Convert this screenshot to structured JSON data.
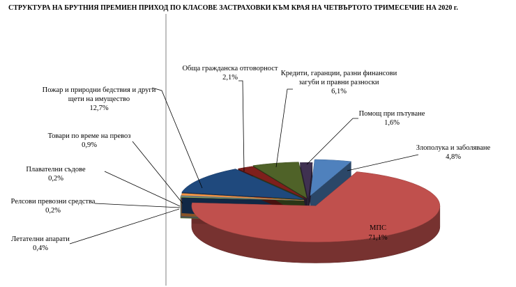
{
  "chart_data": {
    "type": "pie",
    "title": "СТРУКТУРА  НА БРУТНИЯ  ПРЕМИЕН  ПРИХОД  ПО КЛАСОВЕ  ЗАСТРАХОВКИ  КЪМ КРАЯ НА ЧЕТВЪРТОТО  ТРИМЕСЕЧИЕ  НА 2020 г.",
    "value_unit": "%",
    "slices": [
      {
        "name": "Злополука и заболяване",
        "value": 4.8,
        "value_label": "4,8%",
        "color": "#4f81bd"
      },
      {
        "name": "МПС",
        "value": 71.1,
        "value_label": "71,1%",
        "color": "#c0504d"
      },
      {
        "name": "Летателни  апарати",
        "value": 0.4,
        "value_label": "0,4%",
        "color": "#9bbb59"
      },
      {
        "name": "Релсови превозни средства",
        "value": 0.2,
        "value_label": "0,2%",
        "color": "#8064a2"
      },
      {
        "name": "Плавателни  съдове",
        "value": 0.2,
        "value_label": "0,2%",
        "color": "#4bacc6"
      },
      {
        "name": "Товари по време на превоз",
        "value": 0.9,
        "value_label": "0,9%",
        "color": "#f79646"
      },
      {
        "name": "Пожар и природни бедствия и други щети на имущество",
        "value": 12.7,
        "value_label": "12,7%",
        "color": "#1f497d"
      },
      {
        "name": "Обща гражданска отговорност",
        "value": 2.1,
        "value_label": "2,1%",
        "color": "#7f1f1c"
      },
      {
        "name": "Кредити,  гаранции,  разни финансови загуби и правни разноски",
        "value": 6.1,
        "value_label": "6,1%",
        "color": "#4f6228"
      },
      {
        "name": "Помощ при пътуване",
        "value": 1.6,
        "value_label": "1,6%",
        "color": "#3f3151"
      }
    ]
  }
}
